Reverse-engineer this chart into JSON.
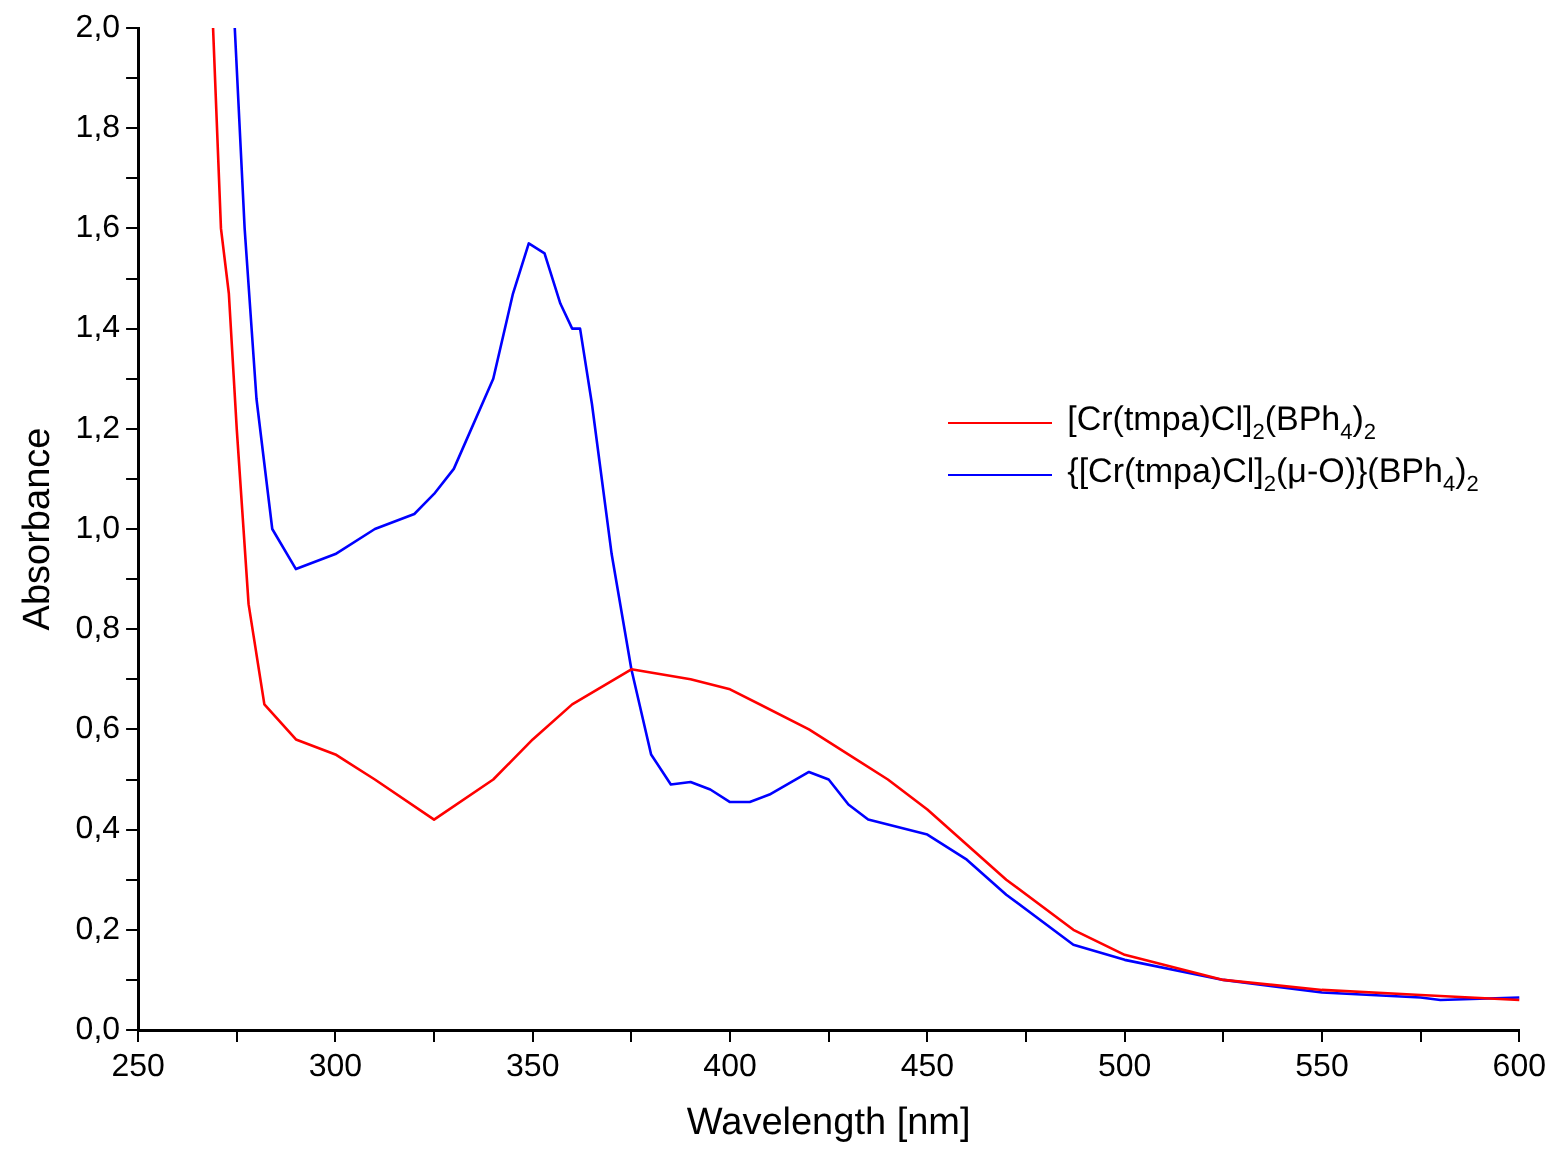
{
  "chart_data": {
    "type": "line",
    "xlabel": "Wavelength [nm]",
    "ylabel": "Absorbance",
    "xlim": [
      250,
      600
    ],
    "ylim": [
      0,
      2
    ],
    "xticks": [
      250,
      {
        "value": 275,
        "label": null
      },
      300,
      {
        "value": 325,
        "label": null
      },
      350,
      {
        "value": 375,
        "label": null
      },
      400,
      {
        "value": 425,
        "label": null
      },
      450,
      {
        "value": 475,
        "label": null
      },
      500,
      {
        "value": 525,
        "label": null
      },
      550,
      {
        "value": 575,
        "label": null
      },
      600
    ],
    "yticks": [
      {
        "value": 0,
        "label": "0,0"
      },
      {
        "value": 0.1,
        "label": null
      },
      {
        "value": 0.2,
        "label": "0,2"
      },
      {
        "value": 0.3,
        "label": null
      },
      {
        "value": 0.4,
        "label": "0,4"
      },
      {
        "value": 0.5,
        "label": null
      },
      {
        "value": 0.6,
        "label": "0,6"
      },
      {
        "value": 0.7,
        "label": null
      },
      {
        "value": 0.8,
        "label": "0,8"
      },
      {
        "value": 0.9,
        "label": null
      },
      {
        "value": 1,
        "label": "1,0"
      },
      {
        "value": 1.1,
        "label": null
      },
      {
        "value": 1.2,
        "label": "1,2"
      },
      {
        "value": 1.3,
        "label": null
      },
      {
        "value": 1.4,
        "label": "1,4"
      },
      {
        "value": 1.5,
        "label": null
      },
      {
        "value": 1.6,
        "label": "1,6"
      },
      {
        "value": 1.7,
        "label": null
      },
      {
        "value": 1.8,
        "label": "1,8"
      },
      {
        "value": 1.9,
        "label": null
      },
      {
        "value": 2,
        "label": "2,0"
      }
    ],
    "grid": false,
    "legend": "right",
    "marker": "none",
    "line_style": "solid",
    "series": [
      {
        "name": "[Cr(tmpa)Cl]$_{2}$(BPh$_{4}$)$_{2}$",
        "color": "#ff0000",
        "x": [
          269,
          271,
          273,
          275,
          278,
          282,
          290,
          300,
          310,
          325,
          340,
          350,
          360,
          375,
          390,
          400,
          420,
          440,
          450,
          470,
          487,
          500,
          525,
          550,
          575,
          600
        ],
        "values": [
          2.0,
          1.6,
          1.47,
          1.2,
          0.85,
          0.65,
          0.58,
          0.55,
          0.5,
          0.42,
          0.5,
          0.58,
          0.65,
          0.72,
          0.7,
          0.68,
          0.6,
          0.5,
          0.44,
          0.3,
          0.2,
          0.15,
          0.1,
          0.08,
          0.07,
          0.06
        ]
      },
      {
        "name": "{[Cr(tmpa)Cl]$_{2}$(μ-O)}(BPh$_{4}$)$_{2}$",
        "color": "#0000ff",
        "x": [
          274.5,
          277,
          280,
          284,
          290,
          300,
          310,
          320,
          325,
          330,
          340,
          345,
          349,
          353,
          357,
          360,
          362,
          365,
          370,
          375,
          380,
          385,
          390,
          395,
          400,
          405,
          410,
          420,
          425,
          430,
          435,
          440,
          450,
          460,
          470,
          487,
          500,
          525,
          550,
          575,
          580,
          600
        ],
        "values": [
          2.0,
          1.6,
          1.26,
          1.0,
          0.92,
          0.95,
          1.0,
          1.03,
          1.07,
          1.12,
          1.3,
          1.47,
          1.57,
          1.55,
          1.45,
          1.4,
          1.4,
          1.25,
          0.95,
          0.72,
          0.55,
          0.49,
          0.495,
          0.48,
          0.455,
          0.455,
          0.47,
          0.515,
          0.5,
          0.45,
          0.42,
          0.41,
          0.39,
          0.34,
          0.27,
          0.17,
          0.14,
          0.1,
          0.075,
          0.065,
          0.06,
          0.065
        ]
      }
    ]
  }
}
